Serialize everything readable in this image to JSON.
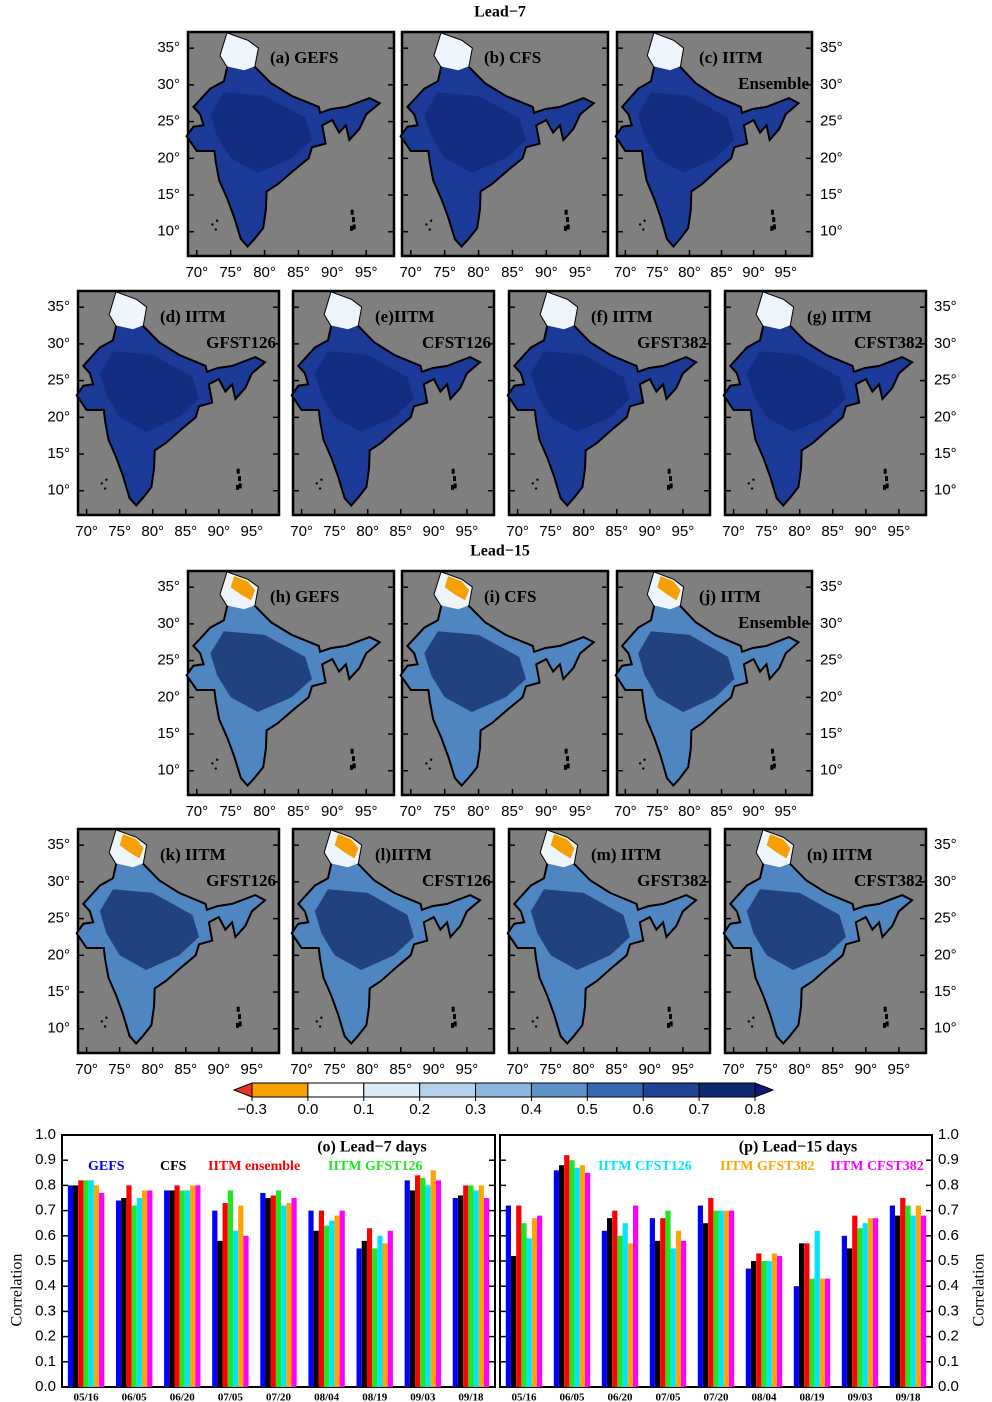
{
  "maps": {
    "lonlim": [
      68.7,
      99.1
    ],
    "latlim": [
      6.7,
      37.2
    ],
    "lonticks": [
      {
        "value": 70,
        "label": "70°"
      },
      {
        "value": 75,
        "label": "75°"
      },
      {
        "value": 80,
        "label": "80°"
      },
      {
        "value": 85,
        "label": "85°"
      },
      {
        "value": 90,
        "label": "90°"
      },
      {
        "value": 95,
        "label": "95°"
      }
    ],
    "latticks": [
      {
        "value": 10,
        "label": "10°"
      },
      {
        "value": 15,
        "label": "15°"
      },
      {
        "value": 20,
        "label": "20°"
      },
      {
        "value": 25,
        "label": "25°"
      },
      {
        "value": 30,
        "label": "30°"
      },
      {
        "value": 35,
        "label": "35°"
      }
    ],
    "sections": [
      {
        "title": "Lead−7",
        "panels": [
          {
            "label": [
              "(a) GEFS"
            ]
          },
          {
            "label": [
              "(b) CFS"
            ]
          },
          {
            "label": [
              "(c) IITM",
              "Ensemble"
            ]
          },
          {
            "label": [
              "(d) IITM",
              "GFST126"
            ]
          },
          {
            "label": [
              "(e)IITM",
              "CFST126"
            ]
          },
          {
            "label": [
              "(f) IITM",
              "GFST382"
            ]
          },
          {
            "label": [
              "(g) IITM",
              "CFST382"
            ]
          }
        ]
      },
      {
        "title": "Lead−15",
        "panels": [
          {
            "label": [
              "(h) GEFS"
            ]
          },
          {
            "label": [
              "(i) CFS"
            ]
          },
          {
            "label": [
              "(j) IITM",
              "Ensemble"
            ]
          },
          {
            "label": [
              "(k) IITM",
              "GFST126"
            ]
          },
          {
            "label": [
              "(l)IITM",
              "CFST126"
            ]
          },
          {
            "label": [
              "(m) IITM",
              "GFST382"
            ]
          },
          {
            "label": [
              "(n) IITM",
              "CFST382"
            ]
          }
        ]
      }
    ]
  },
  "colorbar": {
    "ticks": [
      {
        "value": -0.3,
        "label": "−0.3"
      },
      {
        "value": 0,
        "label": "0.0"
      },
      0.1,
      0.2,
      0.3,
      0.4,
      0.5,
      0.6,
      0.7,
      0.8
    ],
    "colors": [
      "#f5a000",
      "#ffffff",
      "#dcebf7",
      "#b5d2ec",
      "#8ab5dd",
      "#5c92c9",
      "#3869b0",
      "#1f4496",
      "#0f2a6c"
    ],
    "under_color": "#e8332a",
    "over_color": "#14147a"
  },
  "chart_data": [
    {
      "type": "bar",
      "title": "(o) Lead−7 days",
      "ylabel": "Correlation",
      "categories": [
        "05/16",
        "06/05",
        "06/20",
        "07/05",
        "07/20",
        "08/04",
        "08/19",
        "09/03",
        "09/18"
      ],
      "ylim": [
        0,
        1
      ],
      "yticks": [
        {
          "value": 0,
          "label": "0.0"
        },
        0.1,
        0.2,
        0.3,
        0.4,
        0.5,
        0.6,
        0.7,
        0.8,
        0.9,
        {
          "value": 1,
          "label": "1.0"
        }
      ],
      "series": [
        {
          "name": "GEFS",
          "color": "#0000ff",
          "values": [
            0.8,
            0.74,
            0.78,
            0.7,
            0.77,
            0.7,
            0.55,
            0.82,
            0.75
          ]
        },
        {
          "name": "CFS",
          "color": "#000000",
          "values": [
            0.8,
            0.75,
            0.78,
            0.58,
            0.75,
            0.62,
            0.58,
            0.78,
            0.76
          ]
        },
        {
          "name": "IITM ensemble",
          "color": "#ff0000",
          "values": [
            0.82,
            0.8,
            0.8,
            0.73,
            0.76,
            0.7,
            0.63,
            0.84,
            0.8
          ]
        },
        {
          "name": "IITM GFST126",
          "color": "#22e522",
          "values": [
            0.82,
            0.72,
            0.78,
            0.78,
            0.78,
            0.64,
            0.55,
            0.83,
            0.8
          ]
        },
        {
          "color": "#00e5ff",
          "values": [
            0.82,
            0.75,
            0.78,
            0.62,
            0.72,
            0.66,
            0.6,
            0.8,
            0.78
          ]
        },
        {
          "color": "#ffa500",
          "values": [
            0.8,
            0.78,
            0.8,
            0.72,
            0.73,
            0.68,
            0.57,
            0.86,
            0.8
          ]
        },
        {
          "color": "#ff00ff",
          "values": [
            0.77,
            0.78,
            0.8,
            0.6,
            0.75,
            0.7,
            0.62,
            0.82,
            0.75
          ]
        }
      ]
    },
    {
      "type": "bar",
      "title": "(p) Lead−15 days",
      "ylabel": "Correlation",
      "categories": [
        "05/16",
        "06/05",
        "06/20",
        "07/05",
        "07/20",
        "08/04",
        "08/19",
        "09/03",
        "09/18"
      ],
      "ylim": [
        0,
        1
      ],
      "yticks": [
        {
          "value": 0,
          "label": "0.0"
        },
        0.1,
        0.2,
        0.3,
        0.4,
        0.5,
        0.6,
        0.7,
        0.8,
        0.9,
        {
          "value": 1,
          "label": "1.0"
        }
      ],
      "series": [
        {
          "color": "#0000ff",
          "values": [
            0.72,
            0.86,
            0.62,
            0.67,
            0.72,
            0.47,
            0.4,
            0.6,
            0.72
          ]
        },
        {
          "color": "#000000",
          "values": [
            0.52,
            0.88,
            0.67,
            0.58,
            0.65,
            0.5,
            0.57,
            0.55,
            0.68
          ]
        },
        {
          "color": "#ff0000",
          "values": [
            0.72,
            0.92,
            0.7,
            0.67,
            0.75,
            0.53,
            0.57,
            0.68,
            0.75
          ]
        },
        {
          "color": "#22e522",
          "values": [
            0.65,
            0.9,
            0.6,
            0.7,
            0.7,
            0.5,
            0.43,
            0.63,
            0.72
          ]
        },
        {
          "name": "IITM CFST126",
          "color": "#00e5ff",
          "values": [
            0.59,
            0.87,
            0.65,
            0.55,
            0.7,
            0.5,
            0.62,
            0.65,
            0.68
          ]
        },
        {
          "name": "IITM GFST382",
          "color": "#ffa500",
          "values": [
            0.67,
            0.88,
            0.57,
            0.62,
            0.7,
            0.53,
            0.43,
            0.67,
            0.72
          ]
        },
        {
          "name": "IITM CFST382",
          "color": "#ff00ff",
          "values": [
            0.68,
            0.85,
            0.72,
            0.58,
            0.7,
            0.52,
            0.43,
            0.67,
            0.68
          ]
        }
      ]
    }
  ]
}
